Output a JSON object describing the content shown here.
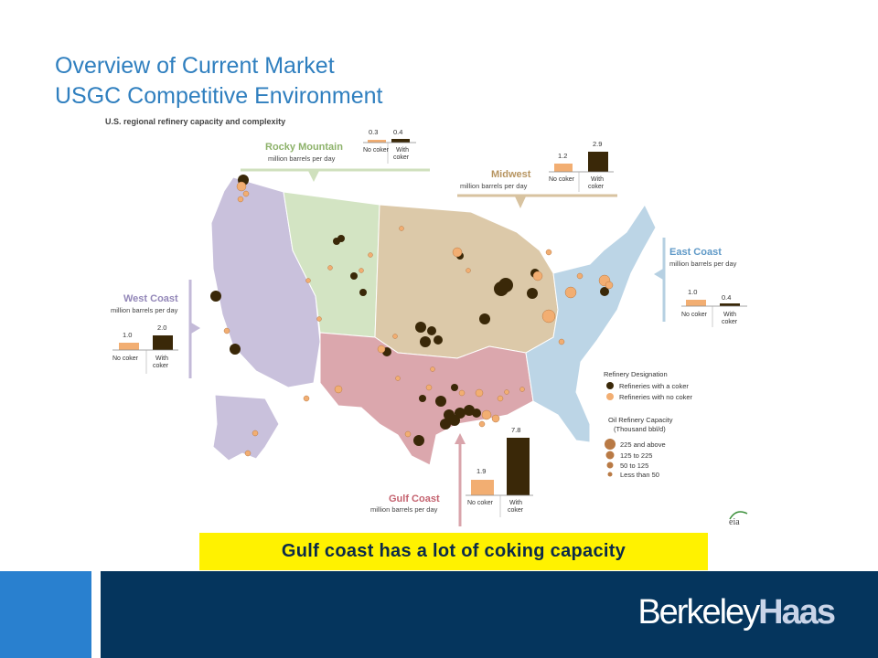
{
  "slide": {
    "title_line1": "Overview of Current Market",
    "title_line2": "USGC Competitive Environment"
  },
  "map": {
    "heading": "U.S. regional refinery capacity and complexity",
    "unit": "million barrels per day",
    "no_coker_label": "No coker",
    "with_coker_label_1": "With",
    "with_coker_label_2": "coker",
    "colors": {
      "west": "#c9c1dc",
      "rocky": "#d3e4c3",
      "midwest": "#dcc9a9",
      "gulf": "#dba7ad",
      "east": "#bcd5e6",
      "no_coker": "#f2ae72",
      "with_coker": "#3a2808"
    },
    "regions": [
      {
        "id": "rocky",
        "name": "Rocky Mountain",
        "no_coker": "0.3",
        "with_coker": "0.4"
      },
      {
        "id": "midwest",
        "name": "Midwest",
        "no_coker": "1.2",
        "with_coker": "2.9"
      },
      {
        "id": "east",
        "name": "East Coast",
        "no_coker": "1.0",
        "with_coker": "0.4"
      },
      {
        "id": "west",
        "name": "West Coast",
        "no_coker": "1.0",
        "with_coker": "2.0"
      },
      {
        "id": "gulf",
        "name": "Gulf Coast",
        "no_coker": "1.9",
        "with_coker": "7.8"
      }
    ],
    "legend": {
      "designation_title": "Refinery Designation",
      "with_coker": "Refineries with a coker",
      "no_coker": "Refineries with no coker",
      "capacity_title_1": "Oil Refinery Capacity",
      "capacity_title_2": "(Thousand bbl/d)",
      "sizes": [
        "225 and above",
        "125 to 225",
        "50 to 125",
        "Less than 50"
      ]
    },
    "source_logo": "eia"
  },
  "callout": "Gulf coast has a lot of coking capacity",
  "brand": {
    "part1": "Berkeley",
    "part2": "Haas"
  }
}
